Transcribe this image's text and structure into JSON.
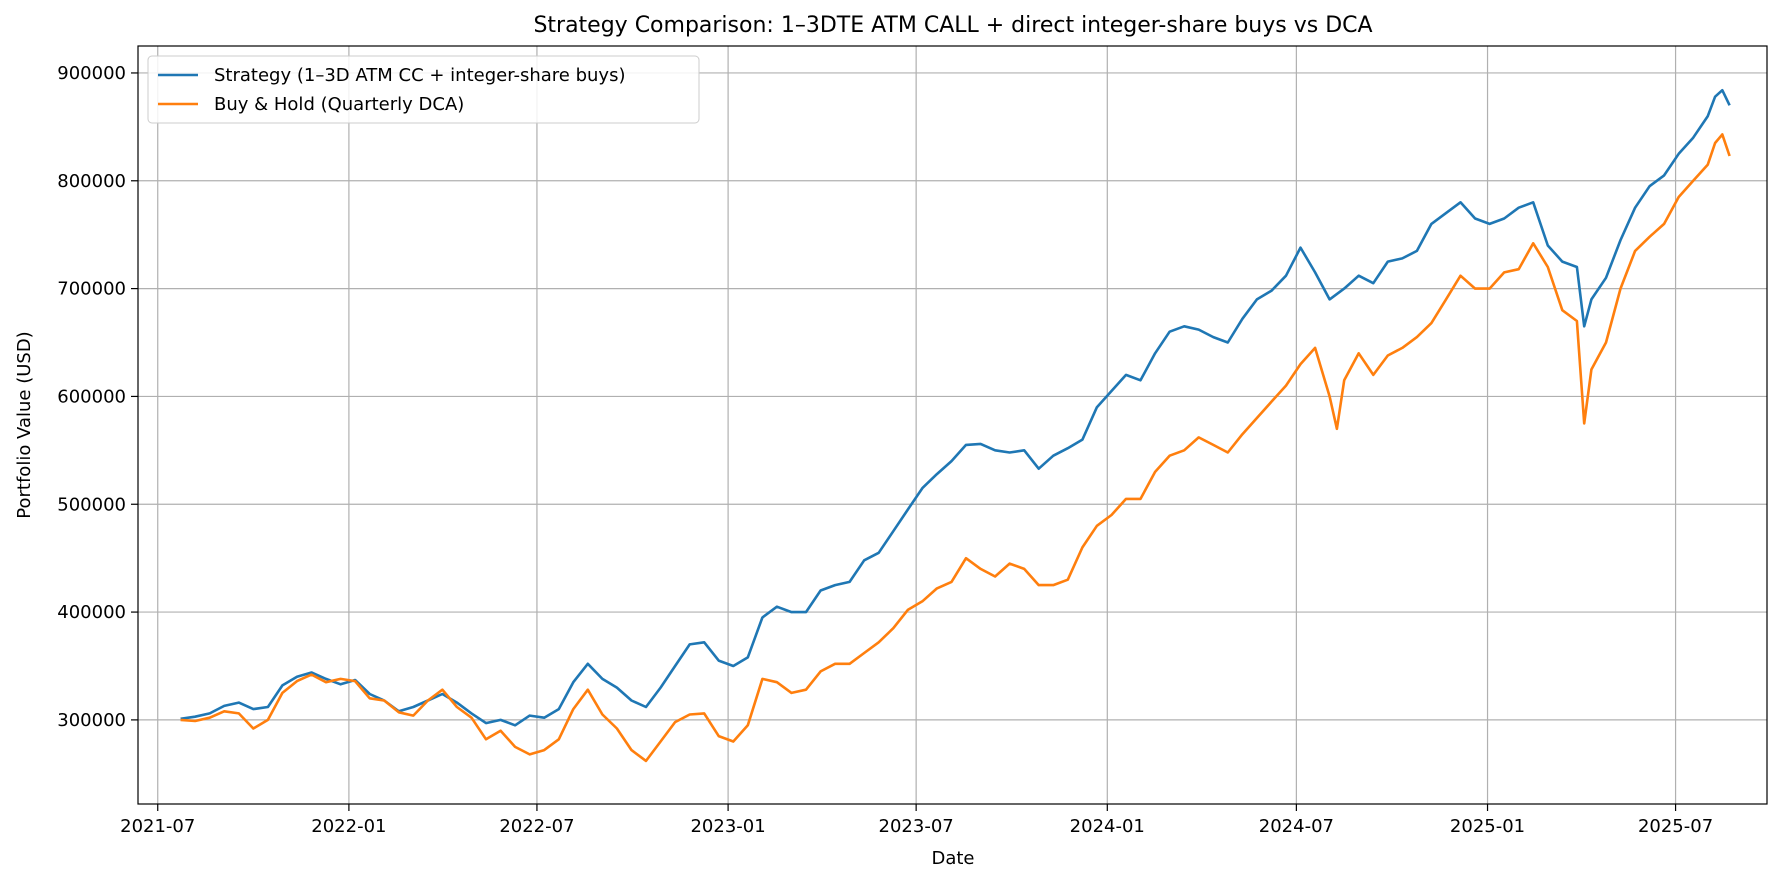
{
  "chart_data": {
    "type": "line",
    "title": "Strategy Comparison: 1–3DTE ATM CALL + direct integer-share buys vs DCA",
    "xlabel": "Date",
    "ylabel": "Portfolio Value (USD)",
    "xlim": [
      "2021-06-12",
      "2025-09-27"
    ],
    "ylim": [
      222000,
      925000
    ],
    "x_ticks": [
      "2021-07",
      "2022-01",
      "2022-07",
      "2023-01",
      "2023-07",
      "2024-01",
      "2024-07",
      "2025-01",
      "2025-07"
    ],
    "x_tick_dates": [
      "2021-07-01",
      "2022-01-01",
      "2022-07-01",
      "2023-01-01",
      "2023-07-01",
      "2024-01-01",
      "2024-07-01",
      "2025-01-01",
      "2025-07-01"
    ],
    "y_ticks": [
      300000,
      400000,
      500000,
      600000,
      700000,
      800000,
      900000
    ],
    "grid": true,
    "legend_position": "upper-left",
    "colors": {
      "strategy": "#1f77b4",
      "buy_hold": "#ff7f0e"
    },
    "series": [
      {
        "name": "Strategy (1–3D ATM CC + integer-share buys)",
        "color": "#1f77b4",
        "points": [
          [
            "2021-07-23",
            301000
          ],
          [
            "2021-08-06",
            303000
          ],
          [
            "2021-08-20",
            306000
          ],
          [
            "2021-09-03",
            313000
          ],
          [
            "2021-09-17",
            316000
          ],
          [
            "2021-10-01",
            310000
          ],
          [
            "2021-10-15",
            312000
          ],
          [
            "2021-10-29",
            332000
          ],
          [
            "2021-11-12",
            340000
          ],
          [
            "2021-11-26",
            344000
          ],
          [
            "2021-12-10",
            338000
          ],
          [
            "2021-12-24",
            333000
          ],
          [
            "2022-01-07",
            337000
          ],
          [
            "2022-01-21",
            324000
          ],
          [
            "2022-02-04",
            318000
          ],
          [
            "2022-02-18",
            308000
          ],
          [
            "2022-03-04",
            312000
          ],
          [
            "2022-03-18",
            318000
          ],
          [
            "2022-04-01",
            324000
          ],
          [
            "2022-04-15",
            316000
          ],
          [
            "2022-04-29",
            306000
          ],
          [
            "2022-05-13",
            297000
          ],
          [
            "2022-05-27",
            300000
          ],
          [
            "2022-06-10",
            295000
          ],
          [
            "2022-06-24",
            304000
          ],
          [
            "2022-07-08",
            302000
          ],
          [
            "2022-07-22",
            310000
          ],
          [
            "2022-08-05",
            335000
          ],
          [
            "2022-08-19",
            352000
          ],
          [
            "2022-09-02",
            338000
          ],
          [
            "2022-09-16",
            330000
          ],
          [
            "2022-09-30",
            318000
          ],
          [
            "2022-10-14",
            312000
          ],
          [
            "2022-10-28",
            330000
          ],
          [
            "2022-11-11",
            350000
          ],
          [
            "2022-11-25",
            370000
          ],
          [
            "2022-12-09",
            372000
          ],
          [
            "2022-12-23",
            355000
          ],
          [
            "2023-01-06",
            350000
          ],
          [
            "2023-01-20",
            358000
          ],
          [
            "2023-02-03",
            395000
          ],
          [
            "2023-02-17",
            405000
          ],
          [
            "2023-03-03",
            400000
          ],
          [
            "2023-03-17",
            400000
          ],
          [
            "2023-03-31",
            420000
          ],
          [
            "2023-04-14",
            425000
          ],
          [
            "2023-04-28",
            428000
          ],
          [
            "2023-05-12",
            448000
          ],
          [
            "2023-05-26",
            455000
          ],
          [
            "2023-06-09",
            475000
          ],
          [
            "2023-06-23",
            495000
          ],
          [
            "2023-07-07",
            515000
          ],
          [
            "2023-07-21",
            528000
          ],
          [
            "2023-08-04",
            540000
          ],
          [
            "2023-08-18",
            555000
          ],
          [
            "2023-09-01",
            556000
          ],
          [
            "2023-09-15",
            550000
          ],
          [
            "2023-09-29",
            548000
          ],
          [
            "2023-10-13",
            550000
          ],
          [
            "2023-10-27",
            533000
          ],
          [
            "2023-11-10",
            545000
          ],
          [
            "2023-11-24",
            552000
          ],
          [
            "2023-12-08",
            560000
          ],
          [
            "2023-12-22",
            590000
          ],
          [
            "2024-01-05",
            605000
          ],
          [
            "2024-01-19",
            620000
          ],
          [
            "2024-02-02",
            615000
          ],
          [
            "2024-02-16",
            640000
          ],
          [
            "2024-03-01",
            660000
          ],
          [
            "2024-03-15",
            665000
          ],
          [
            "2024-03-29",
            662000
          ],
          [
            "2024-04-12",
            655000
          ],
          [
            "2024-04-26",
            650000
          ],
          [
            "2024-05-10",
            672000
          ],
          [
            "2024-05-24",
            690000
          ],
          [
            "2024-06-07",
            698000
          ],
          [
            "2024-06-21",
            712000
          ],
          [
            "2024-07-05",
            738000
          ],
          [
            "2024-07-19",
            715000
          ],
          [
            "2024-08-02",
            690000
          ],
          [
            "2024-08-16",
            700000
          ],
          [
            "2024-08-30",
            712000
          ],
          [
            "2024-09-13",
            705000
          ],
          [
            "2024-09-27",
            725000
          ],
          [
            "2024-10-11",
            728000
          ],
          [
            "2024-10-25",
            735000
          ],
          [
            "2024-11-08",
            760000
          ],
          [
            "2024-11-22",
            770000
          ],
          [
            "2024-12-06",
            780000
          ],
          [
            "2024-12-20",
            765000
          ],
          [
            "2025-01-03",
            760000
          ],
          [
            "2025-01-17",
            765000
          ],
          [
            "2025-01-31",
            775000
          ],
          [
            "2025-02-14",
            780000
          ],
          [
            "2025-02-28",
            740000
          ],
          [
            "2025-03-14",
            725000
          ],
          [
            "2025-03-28",
            720000
          ],
          [
            "2025-04-04",
            665000
          ],
          [
            "2025-04-11",
            690000
          ],
          [
            "2025-04-25",
            710000
          ],
          [
            "2025-05-09",
            745000
          ],
          [
            "2025-05-23",
            775000
          ],
          [
            "2025-06-06",
            795000
          ],
          [
            "2025-06-20",
            805000
          ],
          [
            "2025-07-04",
            825000
          ],
          [
            "2025-07-18",
            840000
          ],
          [
            "2025-08-01",
            860000
          ],
          [
            "2025-08-08",
            878000
          ],
          [
            "2025-08-15",
            884000
          ],
          [
            "2025-08-22",
            870000
          ]
        ]
      },
      {
        "name": "Buy & Hold (Quarterly DCA)",
        "color": "#ff7f0e",
        "points": [
          [
            "2021-07-23",
            300000
          ],
          [
            "2021-08-06",
            299000
          ],
          [
            "2021-08-20",
            302000
          ],
          [
            "2021-09-03",
            308000
          ],
          [
            "2021-09-17",
            306000
          ],
          [
            "2021-10-01",
            292000
          ],
          [
            "2021-10-15",
            300000
          ],
          [
            "2021-10-29",
            325000
          ],
          [
            "2021-11-12",
            336000
          ],
          [
            "2021-11-26",
            342000
          ],
          [
            "2021-12-10",
            335000
          ],
          [
            "2021-12-24",
            338000
          ],
          [
            "2022-01-07",
            336000
          ],
          [
            "2022-01-21",
            320000
          ],
          [
            "2022-02-04",
            318000
          ],
          [
            "2022-02-18",
            307000
          ],
          [
            "2022-03-04",
            304000
          ],
          [
            "2022-03-18",
            318000
          ],
          [
            "2022-04-01",
            328000
          ],
          [
            "2022-04-15",
            312000
          ],
          [
            "2022-04-29",
            302000
          ],
          [
            "2022-05-13",
            282000
          ],
          [
            "2022-05-27",
            290000
          ],
          [
            "2022-06-10",
            275000
          ],
          [
            "2022-06-24",
            268000
          ],
          [
            "2022-07-08",
            272000
          ],
          [
            "2022-07-22",
            282000
          ],
          [
            "2022-08-05",
            310000
          ],
          [
            "2022-08-19",
            328000
          ],
          [
            "2022-09-02",
            305000
          ],
          [
            "2022-09-16",
            292000
          ],
          [
            "2022-09-30",
            272000
          ],
          [
            "2022-10-14",
            262000
          ],
          [
            "2022-10-28",
            280000
          ],
          [
            "2022-11-11",
            298000
          ],
          [
            "2022-11-25",
            305000
          ],
          [
            "2022-12-09",
            306000
          ],
          [
            "2022-12-23",
            285000
          ],
          [
            "2023-01-06",
            280000
          ],
          [
            "2023-01-20",
            295000
          ],
          [
            "2023-02-03",
            338000
          ],
          [
            "2023-02-17",
            335000
          ],
          [
            "2023-03-03",
            325000
          ],
          [
            "2023-03-17",
            328000
          ],
          [
            "2023-03-31",
            345000
          ],
          [
            "2023-04-14",
            352000
          ],
          [
            "2023-04-28",
            352000
          ],
          [
            "2023-05-12",
            362000
          ],
          [
            "2023-05-26",
            372000
          ],
          [
            "2023-06-09",
            385000
          ],
          [
            "2023-06-23",
            402000
          ],
          [
            "2023-07-07",
            410000
          ],
          [
            "2023-07-21",
            422000
          ],
          [
            "2023-08-04",
            428000
          ],
          [
            "2023-08-18",
            450000
          ],
          [
            "2023-09-01",
            440000
          ],
          [
            "2023-09-15",
            433000
          ],
          [
            "2023-09-29",
            445000
          ],
          [
            "2023-10-13",
            440000
          ],
          [
            "2023-10-27",
            425000
          ],
          [
            "2023-11-10",
            425000
          ],
          [
            "2023-11-24",
            430000
          ],
          [
            "2023-12-08",
            460000
          ],
          [
            "2023-12-22",
            480000
          ],
          [
            "2024-01-05",
            490000
          ],
          [
            "2024-01-19",
            505000
          ],
          [
            "2024-02-02",
            505000
          ],
          [
            "2024-02-16",
            530000
          ],
          [
            "2024-03-01",
            545000
          ],
          [
            "2024-03-15",
            550000
          ],
          [
            "2024-03-29",
            562000
          ],
          [
            "2024-04-12",
            555000
          ],
          [
            "2024-04-26",
            548000
          ],
          [
            "2024-05-10",
            565000
          ],
          [
            "2024-05-24",
            580000
          ],
          [
            "2024-06-07",
            595000
          ],
          [
            "2024-06-21",
            610000
          ],
          [
            "2024-07-05",
            630000
          ],
          [
            "2024-07-19",
            645000
          ],
          [
            "2024-08-02",
            600000
          ],
          [
            "2024-08-09",
            570000
          ],
          [
            "2024-08-16",
            615000
          ],
          [
            "2024-08-30",
            640000
          ],
          [
            "2024-09-13",
            620000
          ],
          [
            "2024-09-27",
            638000
          ],
          [
            "2024-10-11",
            645000
          ],
          [
            "2024-10-25",
            655000
          ],
          [
            "2024-11-08",
            668000
          ],
          [
            "2024-11-22",
            690000
          ],
          [
            "2024-12-06",
            712000
          ],
          [
            "2024-12-20",
            700000
          ],
          [
            "2025-01-03",
            700000
          ],
          [
            "2025-01-17",
            715000
          ],
          [
            "2025-01-31",
            718000
          ],
          [
            "2025-02-14",
            742000
          ],
          [
            "2025-02-28",
            720000
          ],
          [
            "2025-03-14",
            680000
          ],
          [
            "2025-03-28",
            670000
          ],
          [
            "2025-04-04",
            575000
          ],
          [
            "2025-04-11",
            625000
          ],
          [
            "2025-04-25",
            650000
          ],
          [
            "2025-05-09",
            700000
          ],
          [
            "2025-05-23",
            735000
          ],
          [
            "2025-06-06",
            748000
          ],
          [
            "2025-06-20",
            760000
          ],
          [
            "2025-07-04",
            785000
          ],
          [
            "2025-07-18",
            800000
          ],
          [
            "2025-08-01",
            815000
          ],
          [
            "2025-08-08",
            835000
          ],
          [
            "2025-08-15",
            843000
          ],
          [
            "2025-08-22",
            823000
          ]
        ]
      }
    ]
  }
}
